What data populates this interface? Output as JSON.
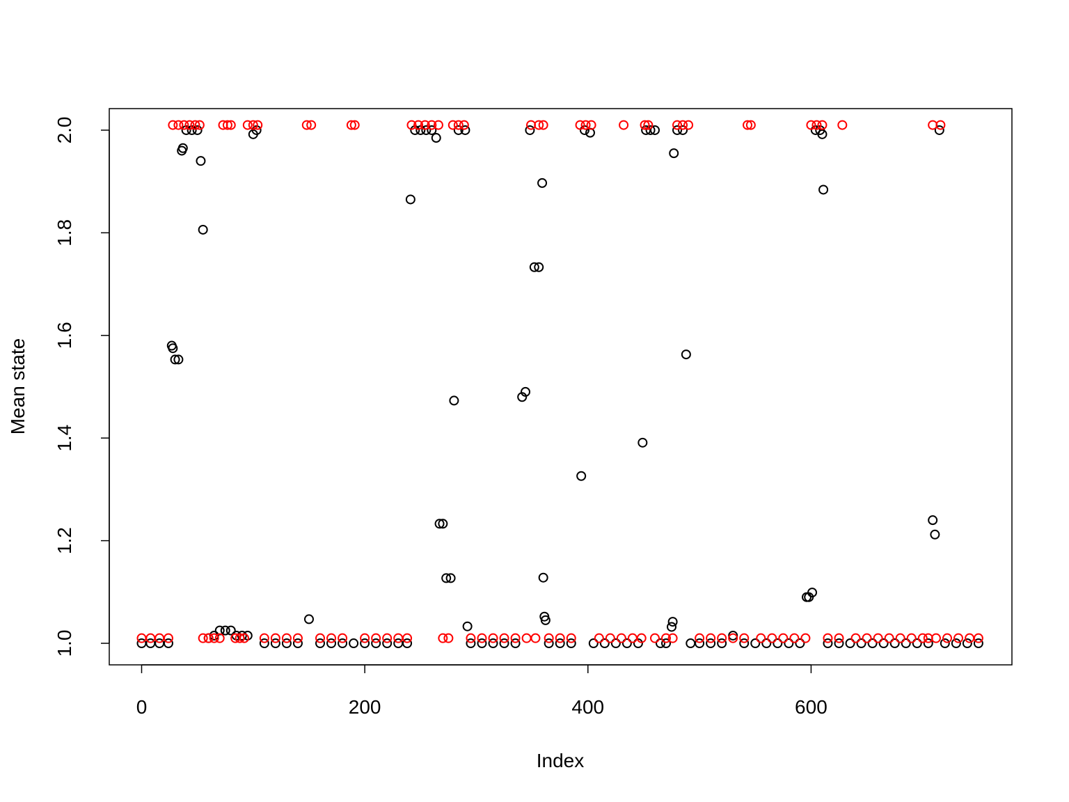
{
  "chart_data": {
    "type": "scatter",
    "x_label": "Index",
    "y_label": "Mean state",
    "xlim": [
      -29,
      780
    ],
    "ylim": [
      0.958,
      2.042
    ],
    "xticks": [
      0,
      200,
      400,
      600
    ],
    "yticks": [
      {
        "value": 1.0,
        "label": "1.0"
      },
      1.2,
      1.4,
      1.6,
      1.8,
      {
        "value": 2.0,
        "label": "2.0"
      }
    ],
    "series": [
      {
        "color": "#000000",
        "x": [
          0,
          8,
          16,
          24,
          27,
          28,
          30,
          33,
          36,
          37,
          40,
          45,
          50,
          53,
          55,
          60,
          65,
          70,
          75,
          80,
          85,
          90,
          95,
          100,
          103,
          110,
          120,
          130,
          140,
          150,
          160,
          170,
          180,
          190,
          200,
          210,
          220,
          230,
          238,
          241,
          245,
          250,
          255,
          260,
          264,
          267,
          270,
          273,
          277,
          280,
          284,
          290,
          292,
          295,
          305,
          315,
          325,
          335,
          341,
          344,
          348,
          352,
          356,
          359,
          360,
          361,
          362,
          365,
          375,
          385,
          394,
          397,
          402,
          405,
          415,
          425,
          435,
          445,
          449,
          452,
          456,
          460,
          465,
          470,
          475,
          476,
          477,
          480,
          485,
          488,
          492,
          500,
          510,
          520,
          530,
          540,
          550,
          560,
          570,
          580,
          590,
          596,
          598,
          601,
          604,
          608,
          610,
          611,
          615,
          625,
          635,
          645,
          655,
          665,
          675,
          685,
          695,
          705,
          709,
          711,
          715,
          720,
          730,
          740,
          750
        ],
        "values": [
          1,
          1,
          1,
          1,
          1.58,
          1.575,
          1.553,
          1.553,
          1.96,
          1.965,
          2,
          2,
          2,
          1.94,
          1.806,
          1.01,
          1.015,
          1.025,
          1.025,
          1.025,
          1.015,
          1.015,
          1.015,
          1.992,
          2,
          1,
          1,
          1,
          1,
          1.047,
          1,
          1,
          1,
          1,
          1,
          1,
          1,
          1,
          1,
          1.865,
          2,
          2,
          2,
          2,
          1.985,
          1.233,
          1.233,
          1.127,
          1.127,
          1.473,
          2,
          2,
          1.033,
          1,
          1,
          1,
          1,
          1,
          1.48,
          1.49,
          2,
          1.733,
          1.733,
          1.897,
          1.128,
          1.052,
          1.045,
          1,
          1,
          1,
          1.326,
          2,
          1.995,
          1,
          1,
          1,
          1,
          1,
          1.391,
          2,
          2,
          2,
          1,
          1,
          1.032,
          1.042,
          1.955,
          2,
          2,
          1.563,
          1,
          1,
          1,
          1,
          1.015,
          1,
          1,
          1,
          1,
          1,
          1,
          1.09,
          1.09,
          1.099,
          2,
          2,
          1.992,
          1.884,
          1,
          1,
          1,
          1,
          1,
          1,
          1,
          1,
          1,
          1,
          1.24,
          1.212,
          2,
          1,
          1,
          1,
          1
        ]
      },
      {
        "color": "#ff0000",
        "x": [
          0,
          8,
          16,
          24,
          28,
          33,
          38,
          43,
          48,
          52,
          55,
          60,
          65,
          70,
          73,
          77,
          80,
          84,
          88,
          92,
          95,
          100,
          104,
          110,
          120,
          130,
          140,
          148,
          152,
          160,
          170,
          180,
          188,
          191,
          200,
          210,
          220,
          230,
          238,
          242,
          248,
          254,
          260,
          266,
          270,
          275,
          279,
          284,
          289,
          295,
          305,
          315,
          325,
          335,
          345,
          349,
          353,
          356,
          360,
          365,
          375,
          385,
          393,
          398,
          403,
          410,
          420,
          430,
          432,
          440,
          448,
          451,
          454,
          460,
          470,
          476,
          480,
          485,
          490,
          500,
          510,
          520,
          530,
          540,
          543,
          546,
          555,
          565,
          575,
          585,
          595,
          600,
          605,
          610,
          615,
          625,
          628,
          640,
          650,
          660,
          670,
          680,
          690,
          700,
          705,
          709,
          712,
          716,
          722,
          732,
          742,
          750
        ],
        "values": [
          1.01,
          1.01,
          1.01,
          1.01,
          2.01,
          2.01,
          2.01,
          2.01,
          2.01,
          2.01,
          1.01,
          1.01,
          1.01,
          1.01,
          2.01,
          2.01,
          2.01,
          1.01,
          1.01,
          1.01,
          2.01,
          2.01,
          2.01,
          1.01,
          1.01,
          1.01,
          1.01,
          2.01,
          2.01,
          1.01,
          1.01,
          1.01,
          2.01,
          2.01,
          1.01,
          1.01,
          1.01,
          1.01,
          1.01,
          2.01,
          2.01,
          2.01,
          2.01,
          2.01,
          1.01,
          1.01,
          2.01,
          2.01,
          2.01,
          1.01,
          1.01,
          1.01,
          1.01,
          1.01,
          1.01,
          2.01,
          1.01,
          2.01,
          2.01,
          1.01,
          1.01,
          1.01,
          2.01,
          2.01,
          2.01,
          1.01,
          1.01,
          1.01,
          2.01,
          1.01,
          1.01,
          2.01,
          2.01,
          1.01,
          1.01,
          1.01,
          2.01,
          2.01,
          2.01,
          1.01,
          1.01,
          1.01,
          1.01,
          1.01,
          2.01,
          2.01,
          1.01,
          1.01,
          1.01,
          1.01,
          1.01,
          2.01,
          2.01,
          2.01,
          1.01,
          1.01,
          2.01,
          1.01,
          1.01,
          1.01,
          1.01,
          1.01,
          1.01,
          1.01,
          1.01,
          2.01,
          1.01,
          2.01,
          1.01,
          1.01,
          1.01,
          1.01
        ]
      }
    ]
  }
}
